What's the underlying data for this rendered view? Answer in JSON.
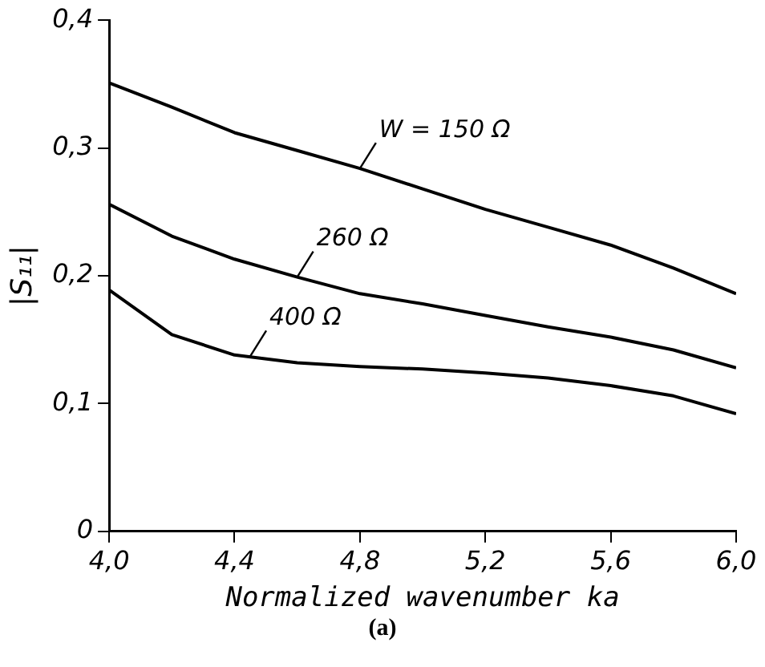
{
  "chart_data": {
    "type": "line",
    "xlabel": "Normalized wavenumber ka",
    "ylabel": "|S₁₁|",
    "xlim": [
      4.0,
      6.0
    ],
    "ylim": [
      0,
      0.4
    ],
    "xticks": [
      {
        "value": 4.0,
        "label": "4,0"
      },
      {
        "value": 4.4,
        "label": "4,4"
      },
      {
        "value": 4.8,
        "label": "4,8"
      },
      {
        "value": 5.2,
        "label": "5,2"
      },
      {
        "value": 5.6,
        "label": "5,6"
      },
      {
        "value": 6.0,
        "label": "6,0"
      }
    ],
    "yticks": [
      0,
      {
        "value": 0.1,
        "label": "0,1"
      },
      {
        "value": 0.2,
        "label": "0,2"
      },
      {
        "value": 0.3,
        "label": "0,3"
      },
      {
        "value": 0.4,
        "label": "0,4"
      }
    ],
    "x": [
      4.0,
      4.2,
      4.4,
      4.6,
      4.8,
      5.0,
      5.2,
      5.4,
      5.6,
      5.8,
      6.0
    ],
    "series": [
      {
        "color": "#000000",
        "values": [
          0.351,
          0.332,
          0.312,
          0.298,
          0.284,
          0.268,
          0.252,
          0.238,
          0.224,
          0.206,
          0.186
        ]
      },
      {
        "color": "#000000",
        "values": [
          0.256,
          0.231,
          0.213,
          0.199,
          0.186,
          0.178,
          0.169,
          0.16,
          0.152,
          0.142,
          0.128
        ]
      },
      {
        "color": "#000000",
        "values": [
          0.189,
          0.154,
          0.138,
          0.132,
          0.129,
          0.127,
          0.124,
          0.12,
          0.114,
          0.106,
          0.092
        ]
      }
    ],
    "annotations": [
      {
        "text": "W = 150 Ω",
        "x": 4.8,
        "y": 0.284
      },
      {
        "text": "260 Ω",
        "x": 4.6,
        "y": 0.199
      },
      {
        "text": "400 Ω",
        "x": 4.45,
        "y": 0.137
      },
      "(a)"
    ],
    "grid": false,
    "legend": false,
    "marker": "none",
    "line_style": "solid"
  }
}
